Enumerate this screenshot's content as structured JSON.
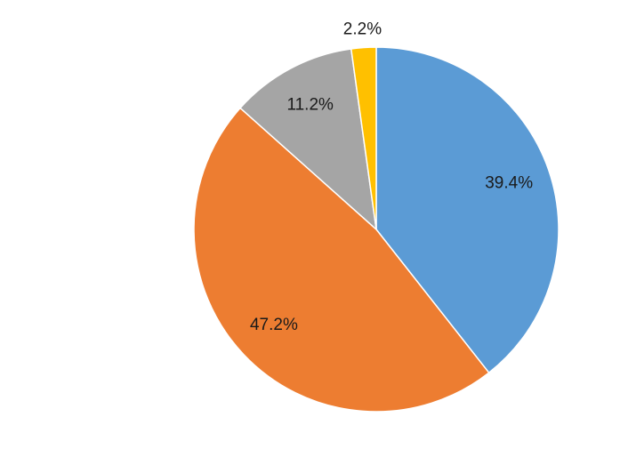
{
  "chart_data": {
    "type": "pie",
    "values": [
      39.4,
      47.2,
      11.2,
      2.2
    ],
    "value_labels": [
      "39.4%",
      "47.2%",
      "11.2%",
      "2.2%"
    ],
    "colors": [
      "#5b9bd5",
      "#ed7d31",
      "#a5a5a5",
      "#ffc000"
    ]
  }
}
